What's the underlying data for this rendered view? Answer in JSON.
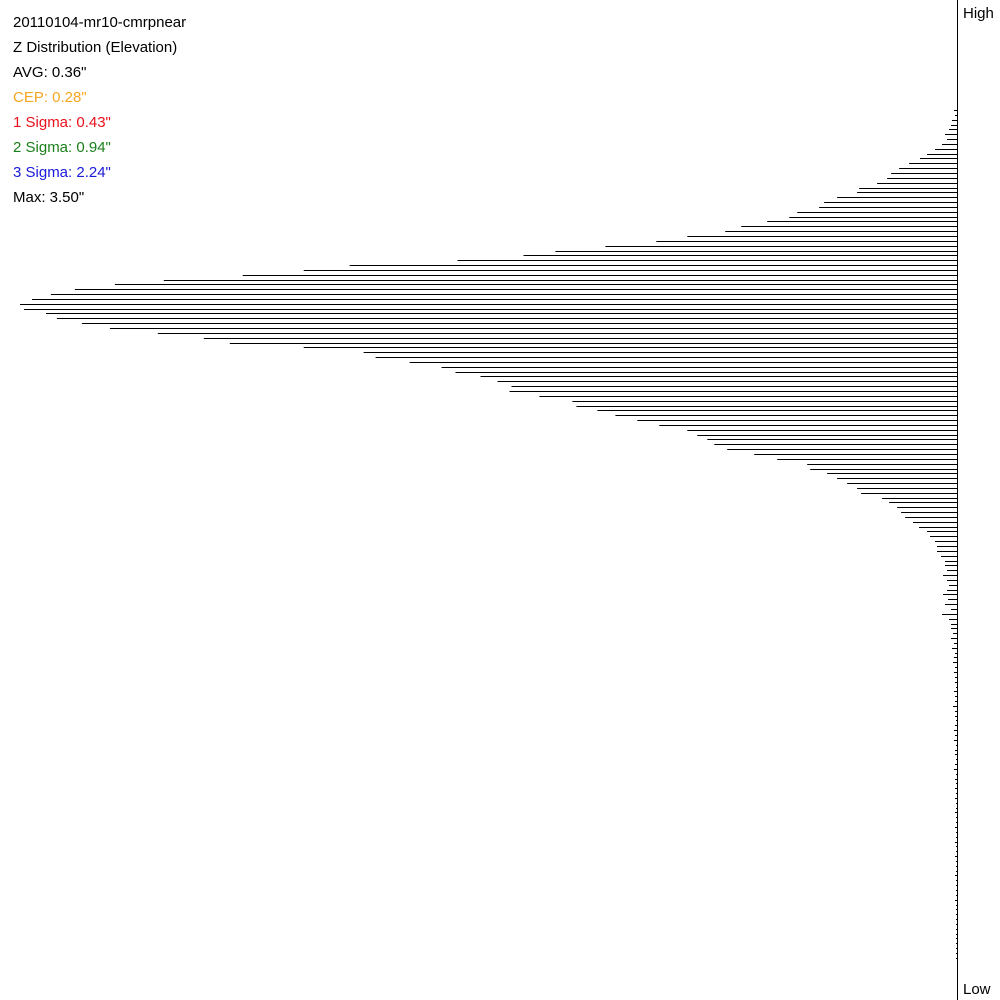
{
  "title": "20110104-mr10-cmrpnear",
  "subtitle": "Z Distribution (Elevation)",
  "stats": {
    "avg": {
      "text": "AVG: 0.36\"",
      "color": "#000000"
    },
    "cep": {
      "text": "CEP: 0.28\"",
      "color": "#f5a623"
    },
    "sigma1": {
      "text": "1 Sigma: 0.43\"",
      "color": "#e8111b"
    },
    "sigma2": {
      "text": "2 Sigma: 0.94\"",
      "color": "#1a7f1a"
    },
    "sigma3": {
      "text": "3 Sigma: 2.24\"",
      "color": "#1a1adb"
    },
    "max": {
      "text": "Max: 3.50\"",
      "color": "#000000"
    }
  },
  "axis": {
    "high": "High",
    "low": "Low"
  },
  "chart_data": {
    "type": "bar",
    "orientation": "horizontal",
    "axis_direction": "top = High, bottom = Low",
    "bar_origin": "right",
    "values": [
      0,
      0,
      0,
      0,
      0,
      0,
      0,
      0,
      0,
      0,
      0,
      0,
      0,
      0,
      0,
      0,
      0,
      0,
      0,
      0,
      0,
      0,
      3,
      2,
      5,
      6,
      8,
      12,
      10,
      15,
      22,
      30,
      37,
      48,
      58,
      66,
      70,
      80,
      98,
      100,
      120,
      133,
      138,
      160,
      168,
      190,
      216,
      232,
      270,
      301,
      352,
      402,
      434,
      500,
      608,
      654,
      715,
      794,
      843,
      883,
      907,
      926,
      938,
      934,
      912,
      901,
      876,
      848,
      800,
      754,
      728,
      654,
      594,
      582,
      548,
      516,
      502,
      477,
      460,
      446,
      448,
      418,
      385,
      381,
      360,
      342,
      320,
      298,
      270,
      260,
      250,
      243,
      230,
      203,
      180,
      150,
      147,
      130,
      120,
      110,
      100,
      96,
      75,
      68,
      60,
      56,
      52,
      44,
      38,
      30,
      27,
      22,
      20,
      20,
      16,
      12,
      12,
      10,
      14,
      10,
      8,
      10,
      14,
      9,
      12,
      6,
      15,
      8,
      6,
      6,
      4,
      6,
      3,
      5,
      2,
      3,
      4,
      2,
      3,
      2,
      2,
      1,
      3,
      2,
      2,
      4,
      2,
      2,
      1,
      2,
      3,
      2,
      3,
      1,
      2,
      2,
      1,
      2,
      3,
      1,
      2,
      1,
      2,
      1,
      2,
      1,
      1,
      2,
      1,
      1,
      2,
      1,
      1,
      2,
      1,
      1,
      2,
      1,
      1,
      1,
      2,
      1,
      1,
      1,
      1,
      2,
      1,
      1,
      1,
      1,
      1,
      1,
      1,
      1,
      1,
      1,
      1,
      1,
      0,
      0,
      0,
      0,
      0,
      0,
      0,
      0
    ],
    "xlim": [
      0,
      958
    ],
    "grid": false,
    "legend": "none"
  }
}
